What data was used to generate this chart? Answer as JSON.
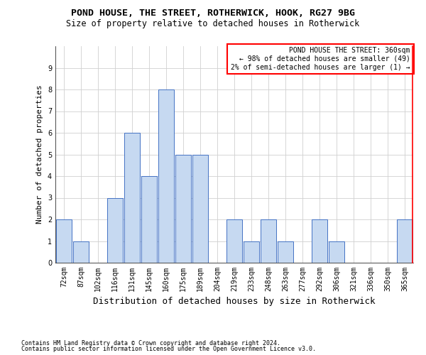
{
  "title": "POND HOUSE, THE STREET, ROTHERWICK, HOOK, RG27 9BG",
  "subtitle": "Size of property relative to detached houses in Rotherwick",
  "xlabel": "Distribution of detached houses by size in Rotherwick",
  "ylabel": "Number of detached properties",
  "footer1": "Contains HM Land Registry data © Crown copyright and database right 2024.",
  "footer2": "Contains public sector information licensed under the Open Government Licence v3.0.",
  "categories": [
    "72sqm",
    "87sqm",
    "102sqm",
    "116sqm",
    "131sqm",
    "145sqm",
    "160sqm",
    "175sqm",
    "189sqm",
    "204sqm",
    "219sqm",
    "233sqm",
    "248sqm",
    "263sqm",
    "277sqm",
    "292sqm",
    "306sqm",
    "321sqm",
    "336sqm",
    "350sqm",
    "365sqm"
  ],
  "values": [
    2,
    1,
    0,
    3,
    6,
    4,
    8,
    5,
    5,
    0,
    2,
    1,
    2,
    1,
    0,
    2,
    1,
    0,
    0,
    0,
    2
  ],
  "bar_color": "#c6d9f1",
  "bar_edge_color": "#4472c4",
  "highlight_index": 20,
  "highlight_color": "#ff0000",
  "annotation_line1": "POND HOUSE THE STREET: 360sqm",
  "annotation_line2": "← 98% of detached houses are smaller (49)",
  "annotation_line3": "2% of semi-detached houses are larger (1) →",
  "annotation_box_color": "#ff0000",
  "ylim": [
    0,
    10
  ],
  "yticks": [
    0,
    1,
    2,
    3,
    4,
    5,
    6,
    7,
    8,
    9,
    10
  ],
  "grid_color": "#d0d0d0",
  "background_color": "#ffffff",
  "title_fontsize": 9.5,
  "subtitle_fontsize": 8.5,
  "ylabel_fontsize": 8,
  "xlabel_fontsize": 9,
  "tick_fontsize": 7,
  "annotation_fontsize": 7,
  "footer_fontsize": 6
}
